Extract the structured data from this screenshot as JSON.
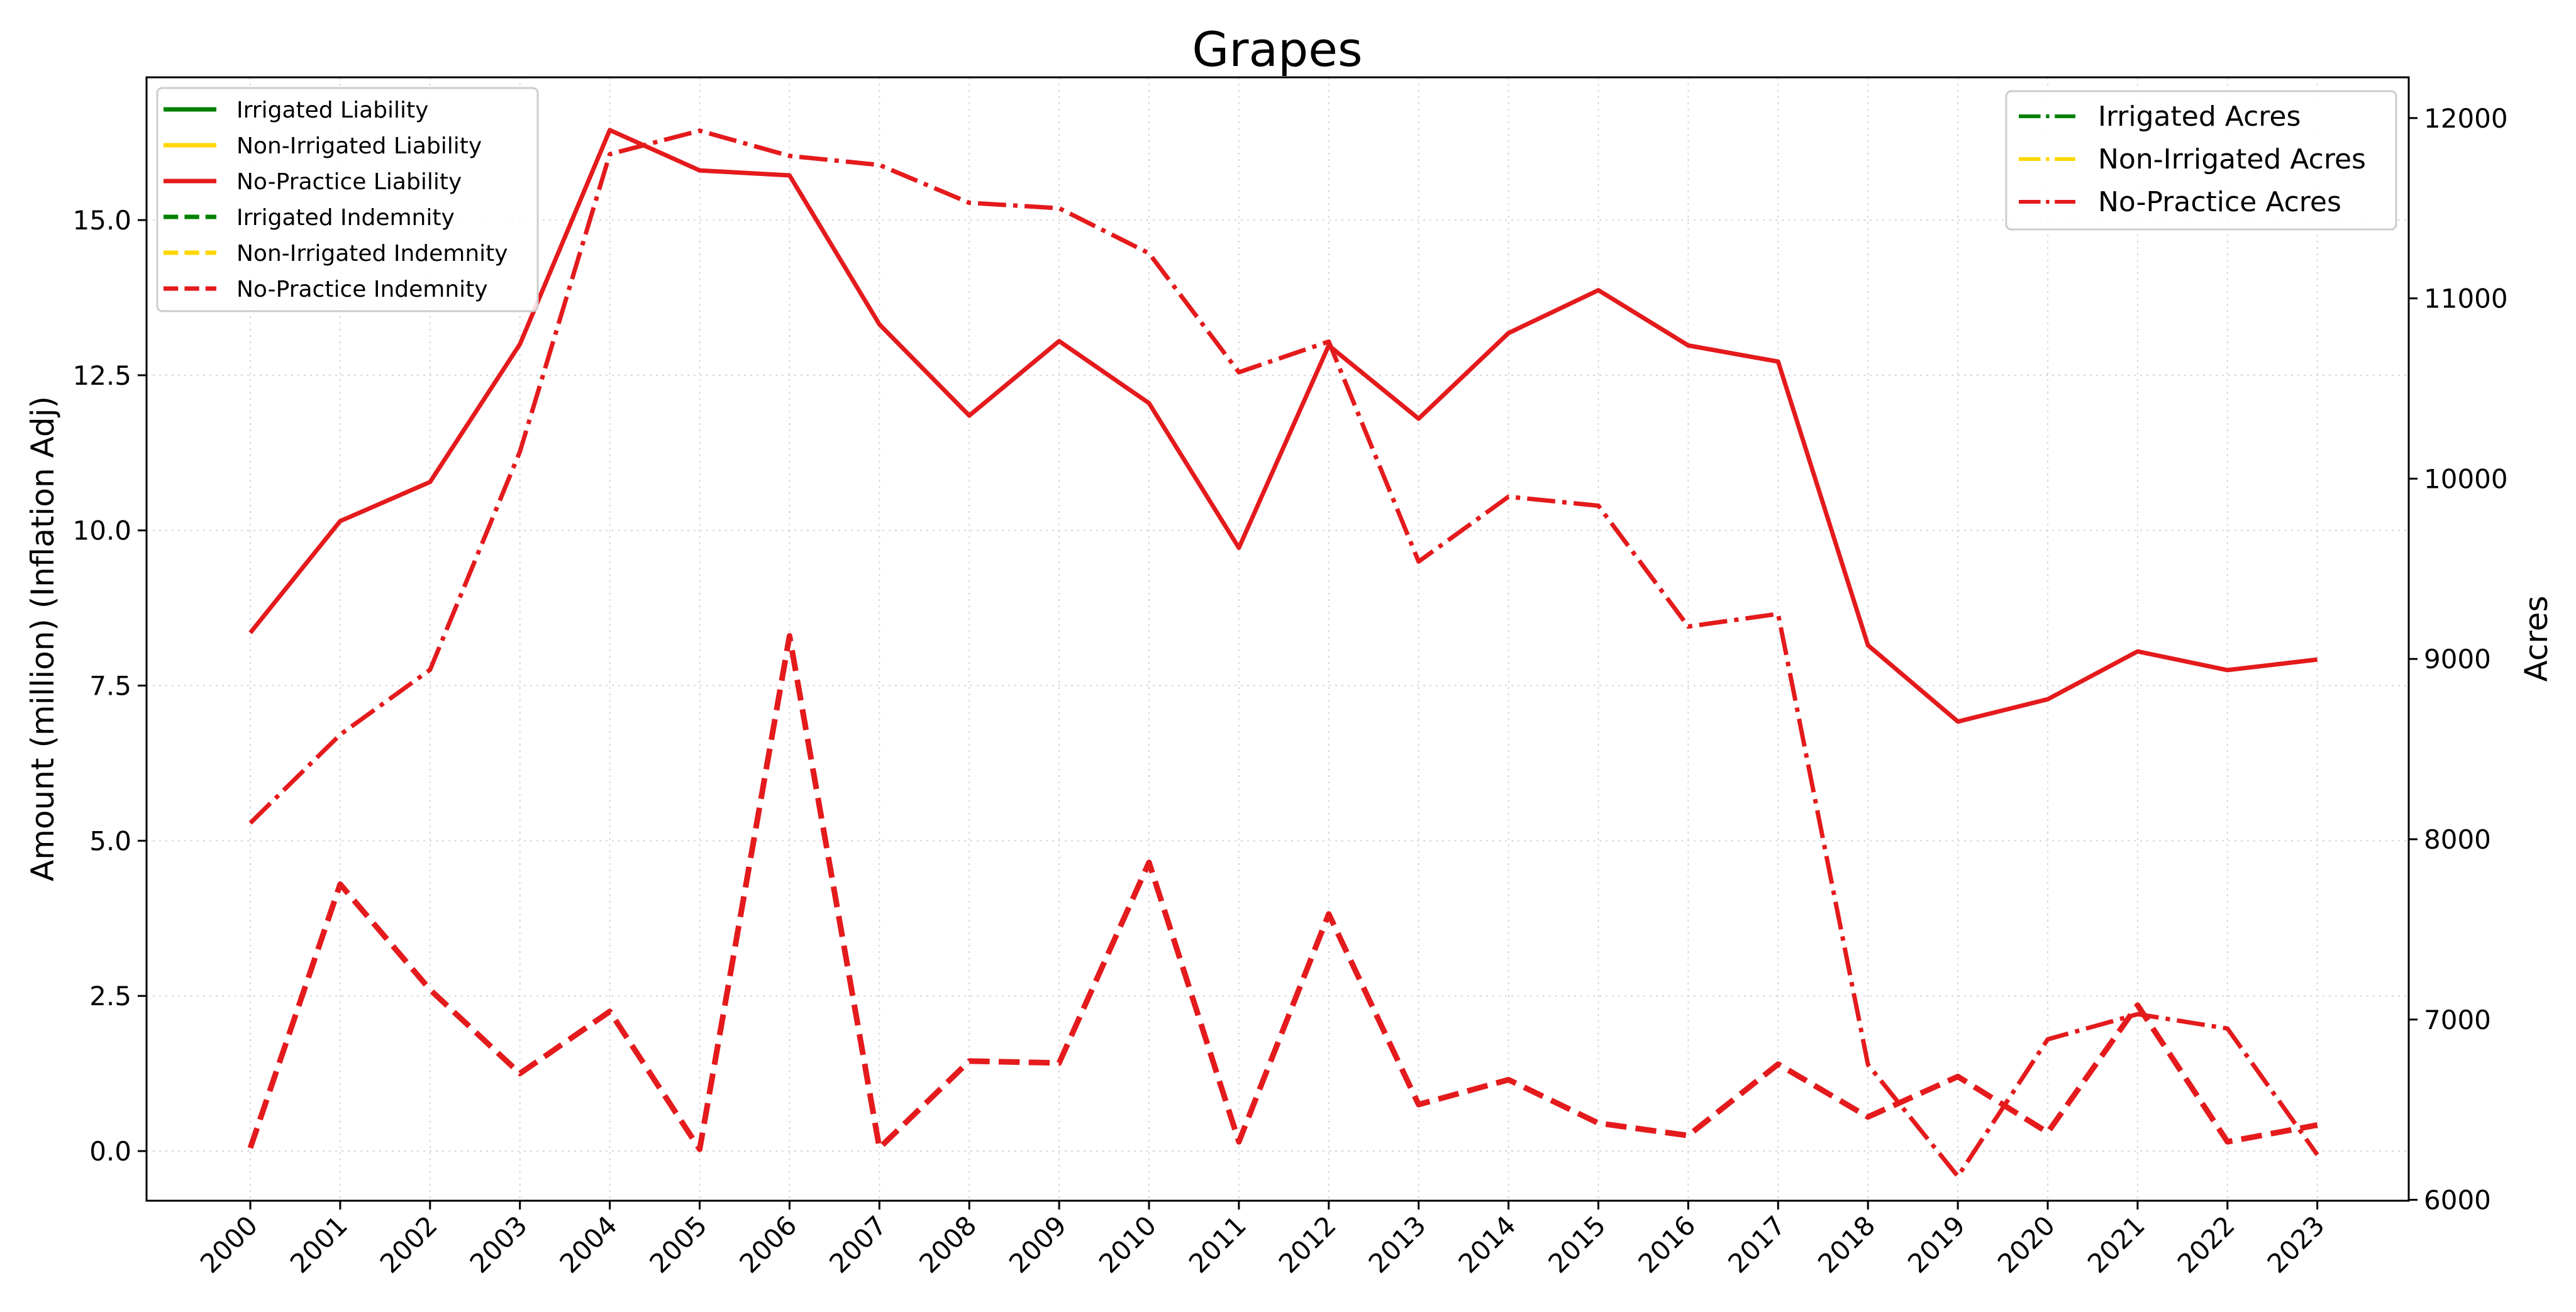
{
  "chart_data": {
    "type": "line",
    "title": "Grapes",
    "xlabel": "",
    "ylabel": "Amount (million) (Inflation Adj)",
    "ylabel_right": "Acres",
    "x": [
      "2000",
      "2001",
      "2002",
      "2003",
      "2004",
      "2005",
      "2006",
      "2007",
      "2008",
      "2009",
      "2010",
      "2011",
      "2012",
      "2013",
      "2014",
      "2015",
      "2016",
      "2017",
      "2018",
      "2019",
      "2020",
      "2021",
      "2022",
      "2023"
    ],
    "ylim": [
      -0.8,
      17.3
    ],
    "ylim_right": [
      5995,
      12226
    ],
    "yticks": [
      0.0,
      2.5,
      5.0,
      7.5,
      10.0,
      12.5,
      15.0
    ],
    "ytick_labels": [
      "0.0",
      "2.5",
      "5.0",
      "7.5",
      "10.0",
      "12.5",
      "15.0"
    ],
    "yticks_right": [
      6000,
      7000,
      8000,
      9000,
      10000,
      11000,
      12000
    ],
    "ytick_labels_right": [
      "6000",
      "7000",
      "8000",
      "9000",
      "10000",
      "11000",
      "12000"
    ],
    "grid": true,
    "legend_left_placement": "upper-left",
    "legend_right_placement": "upper-right",
    "legend_left": [
      {
        "name": "Irrigated Liability",
        "color": "#008000",
        "style": "solid"
      },
      {
        "name": "Non-Irrigated Liability",
        "color": "#FFD700",
        "style": "solid"
      },
      {
        "name": "No-Practice Liability",
        "color": "#E41A1C",
        "style": "solid"
      },
      {
        "name": "Irrigated Indemnity",
        "color": "#008000",
        "style": "dashed"
      },
      {
        "name": "Non-Irrigated Indemnity",
        "color": "#FFD700",
        "style": "dashed"
      },
      {
        "name": "No-Practice Indemnity",
        "color": "#E41A1C",
        "style": "dashed"
      }
    ],
    "legend_right": [
      {
        "name": "Irrigated Acres",
        "color": "#008000",
        "style": "dashdot"
      },
      {
        "name": "Non-Irrigated Acres",
        "color": "#FFD700",
        "style": "dashdot"
      },
      {
        "name": "No-Practice Acres",
        "color": "#E41A1C",
        "style": "dashdot"
      }
    ],
    "series": [
      {
        "name": "No-Practice Liability",
        "axis": "left",
        "color": "#E41A1C",
        "style": "solid",
        "values": [
          8.35,
          10.15,
          10.78,
          13.0,
          16.45,
          15.8,
          15.72,
          13.32,
          11.85,
          13.05,
          12.05,
          9.72,
          12.98,
          11.8,
          13.18,
          13.87,
          12.98,
          12.72,
          8.15,
          6.92,
          7.28,
          8.05,
          7.75,
          7.92
        ]
      },
      {
        "name": "No-Practice Indemnity",
        "axis": "left",
        "color": "#E41A1C",
        "style": "dashed",
        "values": [
          0.05,
          4.3,
          2.6,
          1.25,
          2.25,
          0.03,
          8.3,
          0.05,
          1.45,
          1.42,
          4.65,
          0.15,
          3.82,
          0.75,
          1.15,
          0.45,
          0.25,
          1.4,
          0.55,
          1.2,
          0.3,
          2.35,
          0.15,
          0.42
        ]
      },
      {
        "name": "No-Practice Acres",
        "axis": "right",
        "color": "#E41A1C",
        "style": "dashdot",
        "values": [
          8090,
          8580,
          8940,
          10150,
          11800,
          11930,
          11790,
          11740,
          11530,
          11500,
          11250,
          10590,
          10760,
          9540,
          9900,
          9850,
          9180,
          9250,
          6750,
          6130,
          6890,
          7030,
          6950,
          6250
        ]
      }
    ]
  }
}
